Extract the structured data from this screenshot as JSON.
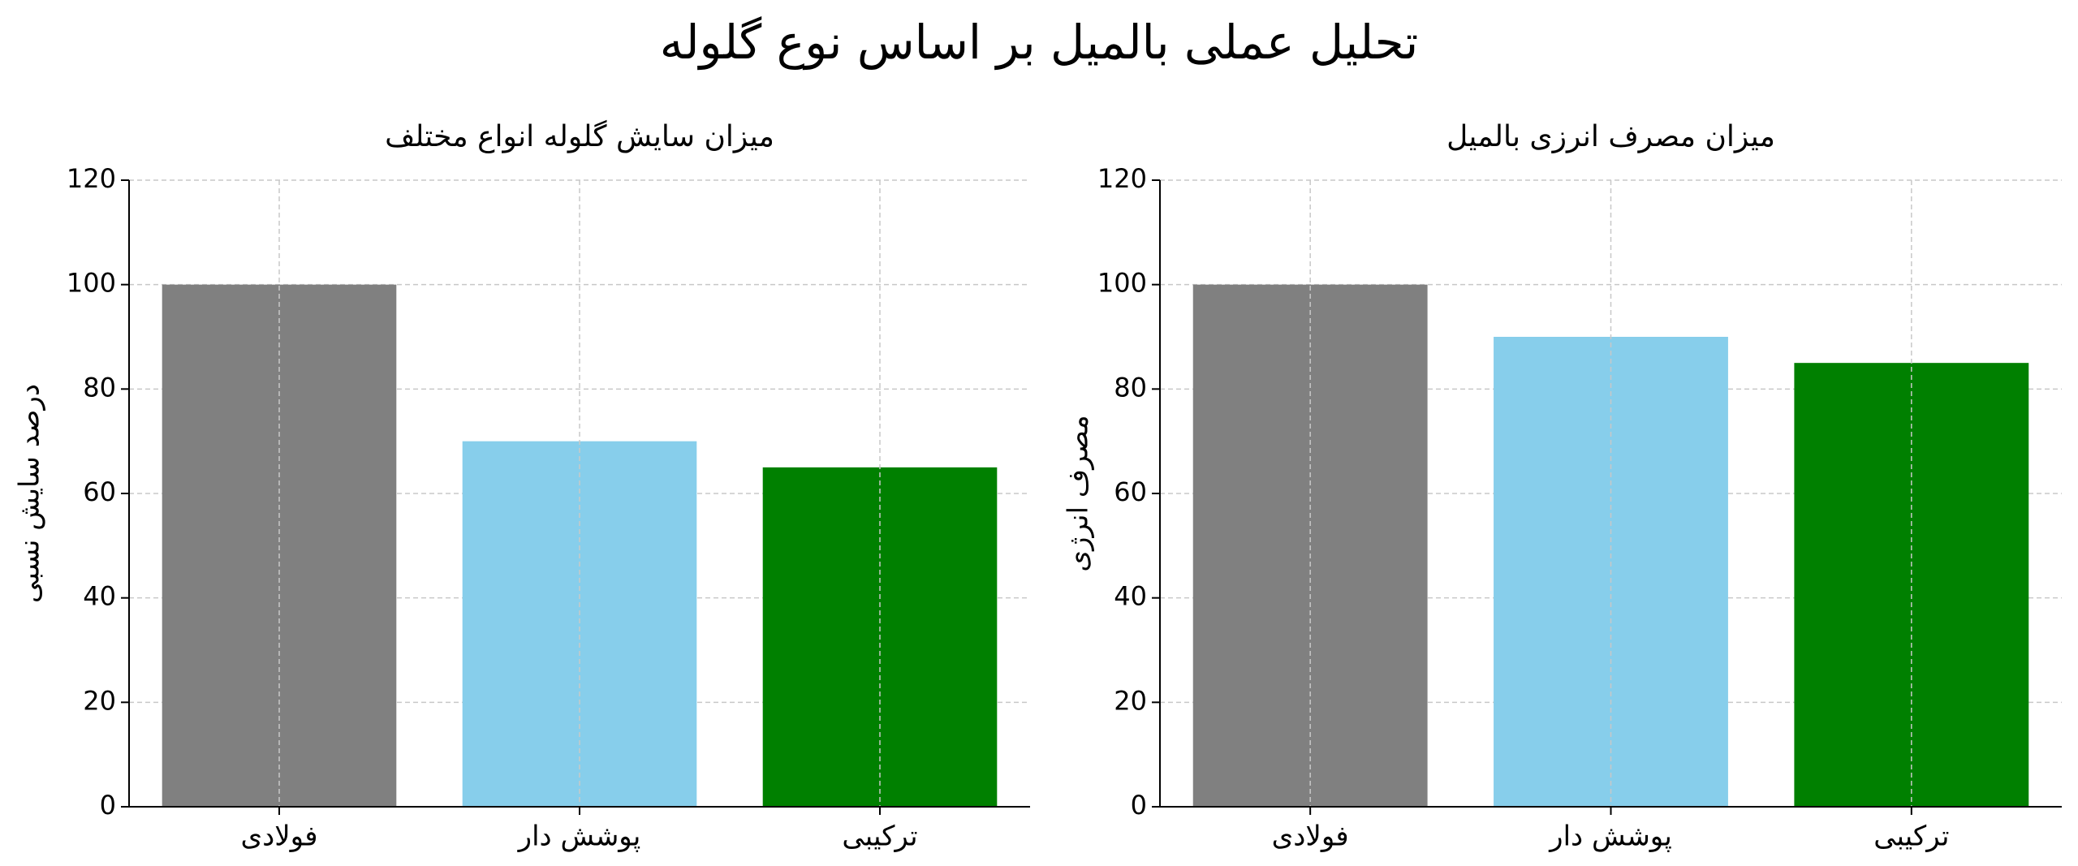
{
  "title": "تحلیل عملی بالمیل بر اساس نوع گلوله",
  "chart_data": [
    {
      "type": "bar",
      "title": "میزان سایش گلوله انواع مختلف",
      "y_label": "درصد سایش نسبی",
      "categories": [
        "فولادی",
        "پوشش دار",
        "ترکیبی"
      ],
      "values": [
        100,
        70,
        65
      ],
      "colors": [
        "#808080",
        "#87ceeb",
        "#008000"
      ],
      "ylim": [
        0,
        120
      ],
      "yticks": [
        0,
        20,
        40,
        60,
        80,
        100,
        120
      ],
      "grid": true
    },
    {
      "type": "bar",
      "title": "میزان مصرف انرزی بالمیل",
      "y_label": "مصرف انرژی",
      "categories": [
        "فولادی",
        "پوشش دار",
        "ترکیبی"
      ],
      "values": [
        100,
        90,
        85
      ],
      "colors": [
        "#808080",
        "#87ceeb",
        "#008000"
      ],
      "ylim": [
        0,
        120
      ],
      "yticks": [
        0,
        20,
        40,
        60,
        80,
        100,
        120
      ],
      "grid": true
    }
  ]
}
